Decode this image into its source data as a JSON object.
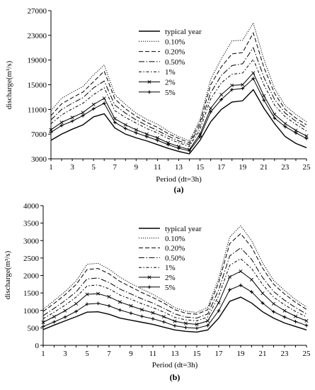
{
  "chart_data": [
    {
      "type": "line",
      "panel_label": "(a)",
      "xlabel": "Period (dt=3h)",
      "ylabel": "discharge(m³/s)",
      "xlim": [
        1,
        25
      ],
      "ylim": [
        3000,
        27000
      ],
      "xticks": [
        1,
        3,
        5,
        7,
        9,
        11,
        13,
        15,
        17,
        19,
        21,
        23,
        25
      ],
      "yticks": [
        3000,
        7000,
        11000,
        15000,
        19000,
        23000,
        27000
      ],
      "legend_position": "top-center",
      "grid": false,
      "x": [
        1,
        2,
        3,
        4,
        5,
        6,
        7,
        8,
        9,
        10,
        11,
        12,
        13,
        14,
        15,
        16,
        17,
        18,
        19,
        20,
        21,
        22,
        23,
        24,
        25
      ],
      "series": [
        {
          "name": "typical year",
          "style": "solid",
          "values": [
            6000,
            7000,
            7800,
            8500,
            9800,
            10300,
            8000,
            7000,
            6400,
            5900,
            5300,
            4700,
            4200,
            3800,
            6000,
            9000,
            11000,
            12200,
            12400,
            14200,
            11200,
            8700,
            6600,
            5500,
            4800
          ]
        },
        {
          "name": "0.10%",
          "style": "dotted",
          "values": [
            10800,
            12800,
            13800,
            14700,
            16600,
            18200,
            13400,
            11800,
            10400,
            9400,
            8600,
            7500,
            6600,
            5900,
            9400,
            15900,
            19200,
            22100,
            22200,
            25000,
            19100,
            14400,
            11600,
            10200,
            9000
          ]
        },
        {
          "name": "0.20%",
          "style": "dash",
          "values": [
            10000,
            11900,
            12900,
            13800,
            15500,
            17200,
            12700,
            11100,
            9900,
            8900,
            8100,
            7100,
            6300,
            5600,
            8900,
            15000,
            17900,
            20000,
            20200,
            23400,
            17800,
            13600,
            11000,
            9600,
            8500
          ]
        },
        {
          "name": "0.50%",
          "style": "longdash-dot",
          "values": [
            9300,
            11000,
            12000,
            12900,
            14500,
            15600,
            11700,
            10400,
            9300,
            8400,
            7600,
            6700,
            5900,
            5300,
            8400,
            13700,
            16500,
            18100,
            18400,
            21000,
            16200,
            12600,
            10400,
            9100,
            8000
          ]
        },
        {
          "name": "1%",
          "style": "dash-dot",
          "values": [
            8700,
            10100,
            11100,
            12000,
            13400,
            14500,
            10800,
            9700,
            8800,
            7900,
            7200,
            6300,
            5600,
            5000,
            7800,
            12700,
            15300,
            16700,
            16900,
            19100,
            15000,
            11700,
            9800,
            8600,
            7500
          ]
        },
        {
          "name": "2%",
          "style": "solid-x",
          "values": [
            7700,
            8900,
            9700,
            10500,
            11800,
            12800,
            9500,
            8500,
            7700,
            7000,
            6400,
            5600,
            5000,
            4500,
            7000,
            11200,
            13400,
            14900,
            15000,
            16900,
            13200,
            10200,
            8700,
            7600,
            6700
          ]
        },
        {
          "name": "5%",
          "style": "solid-plus",
          "values": [
            7300,
            8400,
            9100,
            10000,
            11100,
            12000,
            8900,
            7900,
            7200,
            6600,
            6000,
            5300,
            4700,
            4300,
            6600,
            10600,
            12600,
            14200,
            14400,
            16000,
            12500,
            9600,
            8200,
            7200,
            6300
          ]
        }
      ]
    },
    {
      "type": "line",
      "panel_label": "(b)",
      "xlabel": "Period (dt=3h)",
      "ylabel": "discharge(m³/s)",
      "xlim": [
        1,
        25
      ],
      "ylim": [
        0,
        4000
      ],
      "xticks": [
        1,
        3,
        5,
        7,
        9,
        11,
        13,
        15,
        17,
        19,
        21,
        23,
        25
      ],
      "yticks": [
        0,
        500,
        1000,
        1500,
        2000,
        2500,
        3000,
        3500,
        4000
      ],
      "legend_position": "top-center",
      "grid": false,
      "x": [
        1,
        2,
        3,
        4,
        5,
        6,
        7,
        8,
        9,
        10,
        11,
        12,
        13,
        14,
        15,
        16,
        17,
        18,
        19,
        20,
        21,
        22,
        23,
        24,
        25
      ],
      "series": [
        {
          "name": "typical year",
          "style": "solid",
          "values": [
            450,
            580,
            700,
            820,
            950,
            960,
            890,
            780,
            720,
            660,
            600,
            520,
            440,
            400,
            380,
            440,
            780,
            1260,
            1380,
            1210,
            960,
            780,
            640,
            540,
            440
          ]
        },
        {
          "name": "0.10%",
          "style": "dotted",
          "values": [
            1030,
            1280,
            1540,
            1840,
            2320,
            2350,
            2180,
            1950,
            1770,
            1610,
            1460,
            1280,
            1080,
            980,
            940,
            1090,
            1920,
            3100,
            3420,
            3000,
            2360,
            1860,
            1570,
            1310,
            1100
          ]
        },
        {
          "name": "0.20%",
          "style": "dash",
          "values": [
            970,
            1200,
            1450,
            1740,
            2170,
            2200,
            2050,
            1830,
            1670,
            1510,
            1370,
            1210,
            1020,
            920,
            890,
            1020,
            1800,
            2910,
            3200,
            2810,
            2210,
            1750,
            1470,
            1230,
            1030
          ]
        },
        {
          "name": "0.50%",
          "style": "longdash-dot",
          "values": [
            850,
            1060,
            1280,
            1530,
            1900,
            1930,
            1800,
            1610,
            1470,
            1330,
            1210,
            1060,
            900,
            810,
            780,
            900,
            1590,
            2560,
            2790,
            2460,
            1940,
            1540,
            1290,
            1080,
            900
          ]
        },
        {
          "name": "1%",
          "style": "dash-dot",
          "values": [
            760,
            950,
            1150,
            1380,
            1700,
            1730,
            1620,
            1440,
            1320,
            1190,
            1080,
            950,
            800,
            730,
            700,
            810,
            1420,
            2290,
            2480,
            2200,
            1740,
            1380,
            1160,
            970,
            810
          ]
        },
        {
          "name": "2%",
          "style": "solid-x",
          "values": [
            660,
            820,
            990,
            1190,
            1460,
            1480,
            1390,
            1240,
            1130,
            1020,
            930,
            820,
            690,
            630,
            600,
            700,
            1220,
            1960,
            2120,
            1880,
            1490,
            1190,
            990,
            830,
            700
          ]
        },
        {
          "name": "5%",
          "style": "solid-plus",
          "values": [
            540,
            670,
            810,
            970,
            1180,
            1200,
            1130,
            1010,
            920,
            830,
            760,
            670,
            560,
            510,
            490,
            570,
            990,
            1590,
            1720,
            1530,
            1210,
            960,
            810,
            680,
            570
          ]
        }
      ]
    }
  ]
}
